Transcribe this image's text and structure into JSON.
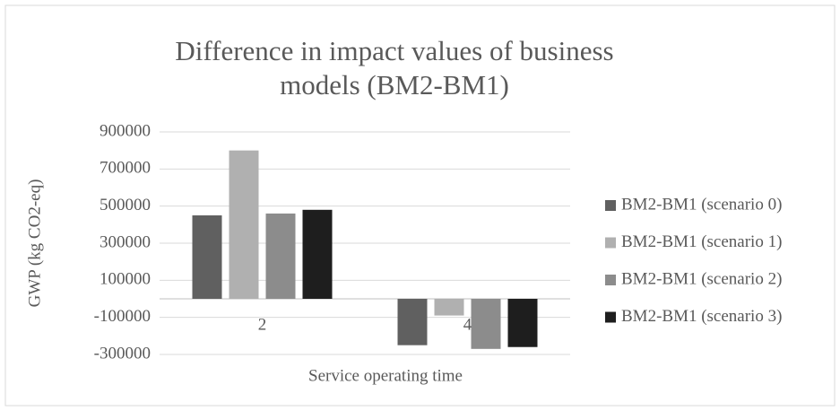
{
  "chart_data": {
    "type": "bar",
    "title": "Difference in impact values of business models (BM2-BM1)",
    "xlabel": "Service operating time",
    "ylabel": "GWP (kg CO2-eq)",
    "categories": [
      "2",
      "4"
    ],
    "series": [
      {
        "name": "BM2-BM1 (scenario 0)",
        "color": "#606060",
        "values": [
          450000,
          -250000
        ]
      },
      {
        "name": "BM2-BM1 (scenario 1)",
        "color": "#b0b0b0",
        "values": [
          800000,
          -90000
        ]
      },
      {
        "name": "BM2-BM1 (scenario 2)",
        "color": "#8c8c8c",
        "values": [
          460000,
          -270000
        ]
      },
      {
        "name": "BM2-BM1 (scenario 3)",
        "color": "#1e1e1e",
        "values": [
          480000,
          -260000
        ]
      }
    ],
    "ylim": [
      -300000,
      900000
    ],
    "yticks": [
      -300000,
      -100000,
      100000,
      300000,
      500000,
      700000,
      900000
    ],
    "grid": true,
    "legend": "right"
  }
}
